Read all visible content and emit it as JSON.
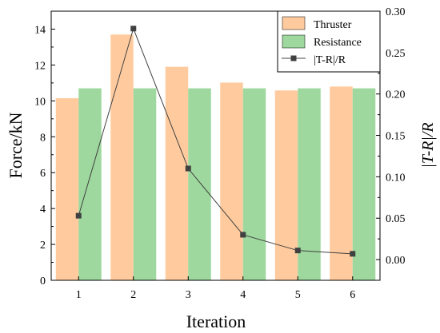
{
  "chart_data": {
    "type": "bar",
    "categories": [
      "1",
      "2",
      "3",
      "4",
      "5",
      "6"
    ],
    "series": [
      {
        "name": "Thruster",
        "kind": "bar",
        "axis": "left",
        "values": [
          10.15,
          13.7,
          11.9,
          11.02,
          10.58,
          10.8
        ],
        "color": "#FFCB9E"
      },
      {
        "name": "Resistance",
        "kind": "bar",
        "axis": "left",
        "values": [
          10.7,
          10.7,
          10.7,
          10.7,
          10.7,
          10.7
        ],
        "color": "#9ED89E"
      },
      {
        "name": "|T-R|/R",
        "kind": "line",
        "axis": "right",
        "values": [
          0.053,
          0.279,
          0.11,
          0.03,
          0.011,
          0.007
        ],
        "color": "#404040"
      }
    ],
    "xlabel": "Iteration",
    "ylabel": "Force/kN",
    "y2label": "|T-R|/R",
    "ylim": [
      0,
      15
    ],
    "y2lim": [
      -0.025,
      0.3
    ],
    "yticks": [
      "0",
      "2",
      "4",
      "6",
      "8",
      "10",
      "12",
      "14"
    ],
    "y2ticks": [
      "0.00",
      "0.05",
      "0.10",
      "0.15",
      "0.20",
      "0.25",
      "0.30"
    ],
    "xticks": [
      "1",
      "2",
      "3",
      "4",
      "5",
      "6"
    ],
    "grid": false,
    "legend_position": "top-right"
  }
}
